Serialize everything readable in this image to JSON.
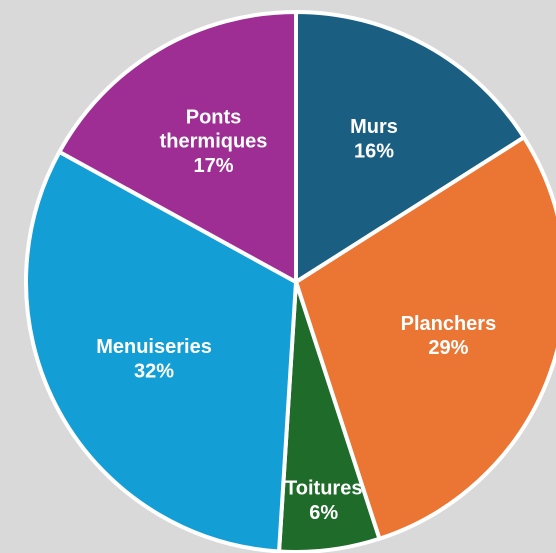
{
  "chart_data": {
    "type": "pie",
    "categories": [
      "Murs",
      "Planchers",
      "Toitures",
      "Menuiseries",
      "Ponts thermiques"
    ],
    "values": [
      16,
      29,
      6,
      32,
      17
    ],
    "value_labels": [
      "16%",
      "29%",
      "6%",
      "32%",
      "17%"
    ],
    "colors": [
      "#1a5f82",
      "#eb7533",
      "#1e6b2a",
      "#139fd6",
      "#9e2e94"
    ]
  }
}
